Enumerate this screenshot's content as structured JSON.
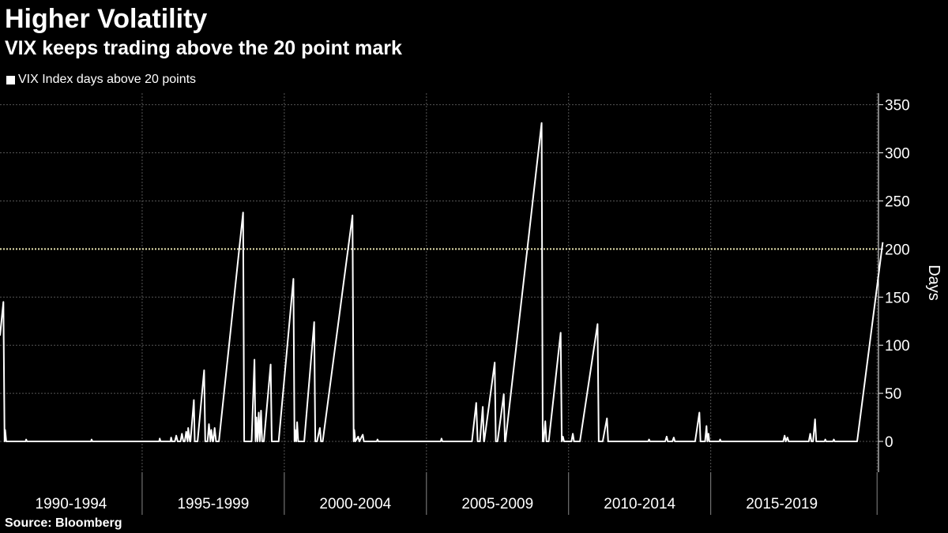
{
  "title": "Higher Volatility",
  "subtitle": "VIX keeps trading above the 20 point mark",
  "source": "Source: Bloomberg",
  "colors": {
    "background": "#000000",
    "line": "#ffffff",
    "reference": "#e8e4b0",
    "grid": "#555555"
  },
  "chart_data": {
    "type": "line",
    "title": "Higher Volatility",
    "subtitle": "VIX keeps trading above the 20 point mark",
    "xlabel": "",
    "ylabel": "Days",
    "ylim": [
      -32,
      362
    ],
    "xlim": [
      1990.0,
      2020.9
    ],
    "yticks": [
      0,
      50,
      100,
      150,
      200,
      250,
      300,
      350
    ],
    "x_periods": [
      "1990-1994",
      "1995-1999",
      "2000-2004",
      "2005-2009",
      "2010-2014",
      "2015-2019"
    ],
    "x_period_starts": [
      1990,
      1995,
      2000,
      2005,
      2010,
      2015
    ],
    "y_axis_side": "right",
    "grid": true,
    "legend": {
      "position": "top-left",
      "entries": [
        "VIX Index days above 20 points"
      ]
    },
    "reference_line": {
      "y": 200,
      "style": "dotted"
    },
    "series": [
      {
        "name": "VIX Index days above 20 points",
        "points": [
          [
            1990.0,
            110
          ],
          [
            1990.12,
            145
          ],
          [
            1990.16,
            0
          ],
          [
            1990.18,
            12
          ],
          [
            1990.22,
            0
          ],
          [
            1990.9,
            0
          ],
          [
            1990.92,
            2
          ],
          [
            1990.95,
            0
          ],
          [
            1993.2,
            0
          ],
          [
            1993.22,
            2
          ],
          [
            1993.25,
            0
          ],
          [
            1995.6,
            0
          ],
          [
            1995.62,
            3
          ],
          [
            1995.65,
            0
          ],
          [
            1996.0,
            0
          ],
          [
            1996.02,
            4
          ],
          [
            1996.05,
            0
          ],
          [
            1996.15,
            0
          ],
          [
            1996.2,
            6
          ],
          [
            1996.25,
            0
          ],
          [
            1996.35,
            0
          ],
          [
            1996.4,
            8
          ],
          [
            1996.45,
            0
          ],
          [
            1996.5,
            0
          ],
          [
            1996.55,
            10
          ],
          [
            1996.6,
            0
          ],
          [
            1996.62,
            14
          ],
          [
            1996.68,
            0
          ],
          [
            1996.7,
            0
          ],
          [
            1996.82,
            43
          ],
          [
            1996.85,
            0
          ],
          [
            1996.95,
            0
          ],
          [
            1997.18,
            74
          ],
          [
            1997.22,
            0
          ],
          [
            1997.3,
            0
          ],
          [
            1997.35,
            18
          ],
          [
            1997.4,
            0
          ],
          [
            1997.43,
            12
          ],
          [
            1997.48,
            0
          ],
          [
            1997.5,
            0
          ],
          [
            1997.55,
            14
          ],
          [
            1997.6,
            0
          ],
          [
            1997.7,
            0
          ],
          [
            1998.55,
            238
          ],
          [
            1998.59,
            0
          ],
          [
            1998.85,
            0
          ],
          [
            1998.95,
            85
          ],
          [
            1998.99,
            0
          ],
          [
            1999.02,
            25
          ],
          [
            1999.06,
            0
          ],
          [
            1999.1,
            30
          ],
          [
            1999.14,
            0
          ],
          [
            1999.18,
            32
          ],
          [
            1999.22,
            0
          ],
          [
            1999.28,
            0
          ],
          [
            1999.52,
            80
          ],
          [
            1999.56,
            0
          ],
          [
            1999.8,
            0
          ],
          [
            2000.32,
            169
          ],
          [
            2000.36,
            0
          ],
          [
            2000.38,
            12
          ],
          [
            2000.42,
            0
          ],
          [
            2000.45,
            20
          ],
          [
            2000.49,
            0
          ],
          [
            2000.55,
            0
          ],
          [
            2000.7,
            0
          ],
          [
            2001.05,
            124
          ],
          [
            2001.09,
            0
          ],
          [
            2001.15,
            0
          ],
          [
            2001.25,
            14
          ],
          [
            2001.29,
            0
          ],
          [
            2001.35,
            0
          ],
          [
            2002.4,
            235
          ],
          [
            2002.44,
            0
          ],
          [
            2002.46,
            12
          ],
          [
            2002.5,
            0
          ],
          [
            2002.6,
            5
          ],
          [
            2002.64,
            0
          ],
          [
            2002.76,
            7
          ],
          [
            2002.8,
            0
          ],
          [
            2003.25,
            0
          ],
          [
            2003.28,
            2
          ],
          [
            2003.31,
            0
          ],
          [
            2005.5,
            0
          ],
          [
            2005.53,
            3
          ],
          [
            2005.56,
            0
          ],
          [
            2006.6,
            0
          ],
          [
            2006.75,
            40
          ],
          [
            2006.8,
            0
          ],
          [
            2006.88,
            0
          ],
          [
            2006.98,
            36
          ],
          [
            2007.02,
            0
          ],
          [
            2007.03,
            0
          ],
          [
            2007.4,
            82
          ],
          [
            2007.44,
            0
          ],
          [
            2007.5,
            0
          ],
          [
            2007.72,
            49
          ],
          [
            2007.76,
            0
          ],
          [
            2007.78,
            0
          ],
          [
            2009.05,
            331
          ],
          [
            2009.09,
            0
          ],
          [
            2009.12,
            0
          ],
          [
            2009.18,
            21
          ],
          [
            2009.22,
            0
          ],
          [
            2009.3,
            0
          ],
          [
            2009.72,
            113
          ],
          [
            2009.76,
            0
          ],
          [
            2009.8,
            5
          ],
          [
            2009.84,
            0
          ],
          [
            2010.1,
            0
          ],
          [
            2010.15,
            8
          ],
          [
            2010.19,
            0
          ],
          [
            2010.4,
            0
          ],
          [
            2011.02,
            122
          ],
          [
            2011.06,
            0
          ],
          [
            2011.2,
            0
          ],
          [
            2011.35,
            24
          ],
          [
            2011.39,
            0
          ],
          [
            2012.8,
            0
          ],
          [
            2012.83,
            2
          ],
          [
            2012.86,
            0
          ],
          [
            2013.4,
            0
          ],
          [
            2013.45,
            5
          ],
          [
            2013.49,
            0
          ],
          [
            2013.65,
            0
          ],
          [
            2013.7,
            4
          ],
          [
            2013.74,
            0
          ],
          [
            2014.45,
            0
          ],
          [
            2014.6,
            30
          ],
          [
            2014.64,
            0
          ],
          [
            2014.8,
            0
          ],
          [
            2014.85,
            16
          ],
          [
            2014.88,
            0
          ],
          [
            2014.92,
            8
          ],
          [
            2014.95,
            0
          ],
          [
            2015.3,
            0
          ],
          [
            2015.33,
            2
          ],
          [
            2015.36,
            0
          ],
          [
            2017.55,
            0
          ],
          [
            2017.6,
            6
          ],
          [
            2017.64,
            0
          ],
          [
            2017.7,
            4
          ],
          [
            2017.74,
            0
          ],
          [
            2018.45,
            0
          ],
          [
            2018.5,
            8
          ],
          [
            2018.54,
            0
          ],
          [
            2018.6,
            0
          ],
          [
            2018.67,
            23
          ],
          [
            2018.71,
            0
          ],
          [
            2019.0,
            0
          ],
          [
            2019.03,
            2
          ],
          [
            2019.06,
            0
          ],
          [
            2019.3,
            0
          ],
          [
            2019.33,
            2
          ],
          [
            2019.36,
            0
          ],
          [
            2020.15,
            0
          ],
          [
            2021.05,
            207
          ]
        ]
      }
    ]
  }
}
